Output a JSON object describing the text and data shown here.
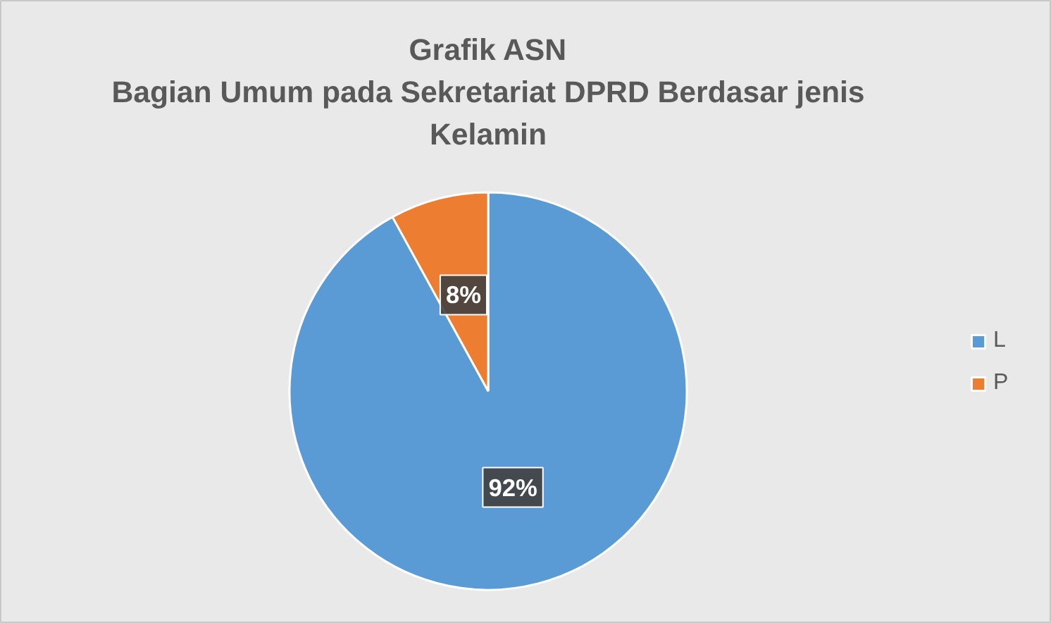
{
  "chart_data": {
    "type": "pie",
    "title": "Grafik ASN",
    "subtitle": "Bagian Umum pada Sekretariat DPRD Berdasar jenis Kelamin",
    "categories": [
      "L",
      "P"
    ],
    "values": [
      92,
      8
    ],
    "colors": [
      "#5b9bd5",
      "#ed7d31"
    ],
    "value_labels": [
      "92%",
      "8%"
    ],
    "legend": "right"
  }
}
